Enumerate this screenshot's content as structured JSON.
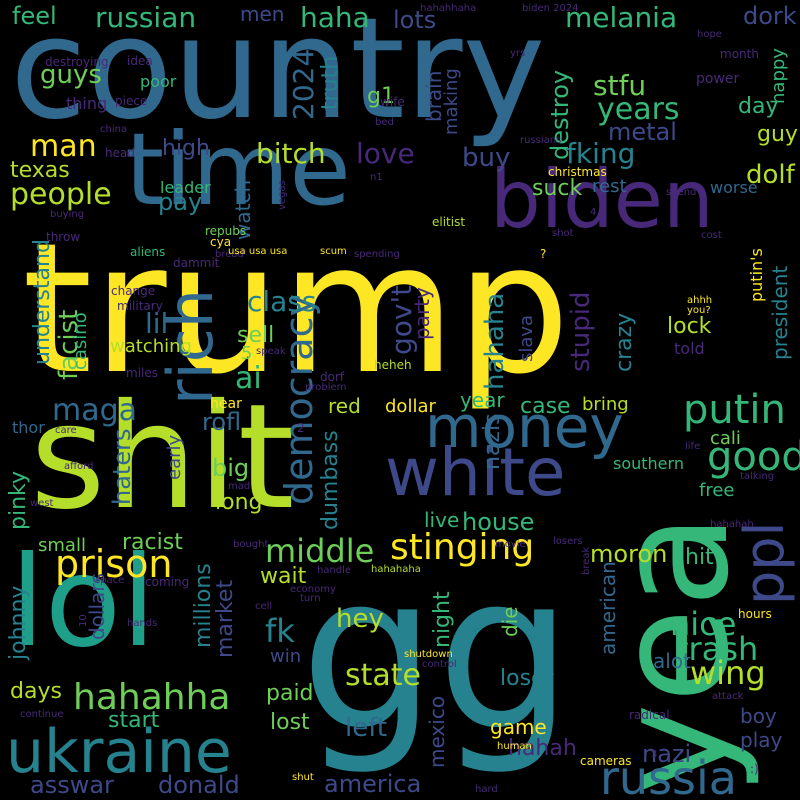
{
  "cloud": {
    "background": "#000000",
    "palette": [
      "#fde725",
      "#b5de2b",
      "#6ece58",
      "#35b779",
      "#1f9e89",
      "#26828e",
      "#31688e",
      "#3e4989",
      "#482878",
      "#440154"
    ],
    "words": [
      {
        "text": "trump",
        "color": "#fde725"
      },
      {
        "text": "country",
        "color": "#31688e"
      },
      {
        "text": "shit",
        "color": "#b5de2b"
      },
      {
        "text": "gg",
        "color": "#26828e"
      },
      {
        "text": "yea",
        "color": "#35b779"
      },
      {
        "text": "lol",
        "color": "#1f9e89"
      },
      {
        "text": "time",
        "color": "#31688e"
      },
      {
        "text": "biden",
        "color": "#482878"
      },
      {
        "text": "white",
        "color": "#3e4989"
      },
      {
        "text": "ukraine",
        "color": "#26828e"
      },
      {
        "text": "money",
        "color": "#31688e"
      },
      {
        "text": "rich",
        "color": "#31688e"
      },
      {
        "text": "russia",
        "color": "#31688e"
      },
      {
        "text": "ppl",
        "color": "#3e4989"
      },
      {
        "text": "prison",
        "color": "#fde725"
      },
      {
        "text": "stinging",
        "color": "#fde725"
      },
      {
        "text": "democracy",
        "color": "#31688e"
      },
      {
        "text": "putin",
        "color": "#35b779"
      },
      {
        "text": "good",
        "color": "#35b779"
      },
      {
        "text": "hahahha",
        "color": "#6ece58"
      },
      {
        "text": "middle",
        "color": "#6ece58"
      },
      {
        "text": "nice",
        "color": "#35b779"
      },
      {
        "text": "trash",
        "color": "#35b779"
      },
      {
        "text": "wing",
        "color": "#b5de2b"
      },
      {
        "text": "state",
        "color": "#b5de2b"
      },
      {
        "text": "people",
        "color": "#b5de2b"
      },
      {
        "text": "man",
        "color": "#fde725"
      },
      {
        "text": "melania",
        "color": "#35b779"
      },
      {
        "text": "haha",
        "color": "#35b779"
      },
      {
        "text": "russian",
        "color": "#35b779"
      },
      {
        "text": "feel",
        "color": "#35b779"
      },
      {
        "text": "dork",
        "color": "#3e4989"
      },
      {
        "text": "lots",
        "color": "#3e4989"
      },
      {
        "text": "men",
        "color": "#3e4989"
      },
      {
        "text": "2024",
        "color": "#31688e"
      },
      {
        "text": "guys",
        "color": "#6ece58"
      },
      {
        "text": "truth",
        "color": "#26828e"
      },
      {
        "text": "destroy",
        "color": "#35b779"
      },
      {
        "text": "stfu",
        "color": "#6ece58"
      },
      {
        "text": "years",
        "color": "#35b779"
      },
      {
        "text": "metal",
        "color": "#3e4989"
      },
      {
        "text": "guy",
        "color": "#b5de2b"
      },
      {
        "text": "day",
        "color": "#35b779"
      },
      {
        "text": "happy",
        "color": "#35b779"
      },
      {
        "text": "fking",
        "color": "#26828e"
      },
      {
        "text": "buy",
        "color": "#3e4989"
      },
      {
        "text": "love",
        "color": "#482878"
      },
      {
        "text": "bitch",
        "color": "#b5de2b"
      },
      {
        "text": "high",
        "color": "#3e4989"
      },
      {
        "text": "texas",
        "color": "#b5de2b"
      },
      {
        "text": "pay",
        "color": "#26828e"
      },
      {
        "text": "suck",
        "color": "#6ece58"
      },
      {
        "text": "rest",
        "color": "#31688e"
      },
      {
        "text": "dolf",
        "color": "#b5de2b"
      },
      {
        "text": "worse",
        "color": "#31688e"
      },
      {
        "text": "leader",
        "color": "#35b779"
      },
      {
        "text": "watch",
        "color": "#31688e"
      },
      {
        "text": "brain",
        "color": "#3e4989"
      },
      {
        "text": "making",
        "color": "#3e4989"
      },
      {
        "text": "g1",
        "color": "#6ece58"
      },
      {
        "text": "understand",
        "color": "#26828e"
      },
      {
        "text": "facist",
        "color": "#6ece58"
      },
      {
        "text": "casino",
        "color": "#35b779"
      },
      {
        "text": "class",
        "color": "#26828e"
      },
      {
        "text": "lil",
        "color": "#31688e"
      },
      {
        "text": "ai",
        "color": "#35b779"
      },
      {
        "text": "gov't",
        "color": "#3e4989"
      },
      {
        "text": "hahaha",
        "color": "#26828e"
      },
      {
        "text": "party",
        "color": "#482878"
      },
      {
        "text": "lock",
        "color": "#b5de2b"
      },
      {
        "text": "crazy",
        "color": "#26828e"
      },
      {
        "text": "putin's",
        "color": "#fde725"
      },
      {
        "text": "president",
        "color": "#26828e"
      },
      {
        "text": "maga",
        "color": "#31688e"
      },
      {
        "text": "sell",
        "color": "#6ece58"
      },
      {
        "text": "5",
        "color": "#6ece58"
      },
      {
        "text": "watching",
        "color": "#b5de2b"
      },
      {
        "text": "slava",
        "color": "#3e4989"
      },
      {
        "text": "stupid",
        "color": "#482878"
      },
      {
        "text": "nazis",
        "color": "#31688e"
      },
      {
        "text": "told",
        "color": "#482878"
      },
      {
        "text": "rofl",
        "color": "#31688e"
      },
      {
        "text": "red",
        "color": "#b5de2b"
      },
      {
        "text": "dollar",
        "color": "#fde725"
      },
      {
        "text": "case",
        "color": "#35b779"
      },
      {
        "text": "bring",
        "color": "#b5de2b"
      },
      {
        "text": "year",
        "color": "#35b779"
      },
      {
        "text": "cali",
        "color": "#6ece58"
      },
      {
        "text": "haters",
        "color": "#31688e"
      },
      {
        "text": "big",
        "color": "#6ece58"
      },
      {
        "text": "early",
        "color": "#3e4989"
      },
      {
        "text": "long",
        "color": "#b5de2b"
      },
      {
        "text": "dumbass",
        "color": "#26828e"
      },
      {
        "text": "southern",
        "color": "#35b779"
      },
      {
        "text": "free",
        "color": "#35b779"
      },
      {
        "text": "pinky",
        "color": "#35b779"
      },
      {
        "text": "live",
        "color": "#35b779"
      },
      {
        "text": "house",
        "color": "#35b779"
      },
      {
        "text": "small",
        "color": "#6ece58"
      },
      {
        "text": "racist",
        "color": "#6ece58"
      },
      {
        "text": "moron",
        "color": "#b5de2b"
      },
      {
        "text": "hit",
        "color": "#35b779"
      },
      {
        "text": "johnny",
        "color": "#26828e"
      },
      {
        "text": "dollars",
        "color": "#3e4989"
      },
      {
        "text": "millions",
        "color": "#26828e"
      },
      {
        "text": "market",
        "color": "#3e4989"
      },
      {
        "text": "wait",
        "color": "#b5de2b"
      },
      {
        "text": "fk",
        "color": "#26828e"
      },
      {
        "text": "win",
        "color": "#3e4989"
      },
      {
        "text": "hey",
        "color": "#b5de2b"
      },
      {
        "text": "night",
        "color": "#35b779"
      },
      {
        "text": "die",
        "color": "#6ece58"
      },
      {
        "text": "american",
        "color": "#31688e"
      },
      {
        "text": "alot",
        "color": "#31688e"
      },
      {
        "text": "days",
        "color": "#b5de2b"
      },
      {
        "text": "paid",
        "color": "#6ece58"
      },
      {
        "text": "start",
        "color": "#35b779"
      },
      {
        "text": "lost",
        "color": "#6ece58"
      },
      {
        "text": "left",
        "color": "#31688e"
      },
      {
        "text": "mexico",
        "color": "#3e4989"
      },
      {
        "text": "loser",
        "color": "#26828e"
      },
      {
        "text": "game",
        "color": "#fde725"
      },
      {
        "text": "nazi",
        "color": "#3e4989"
      },
      {
        "text": "hahah",
        "color": "#482878"
      },
      {
        "text": "boy",
        "color": "#3e4989"
      },
      {
        "text": "play",
        "color": "#3e4989"
      },
      {
        "text": "asswar",
        "color": "#3e4989"
      },
      {
        "text": "donald",
        "color": "#3e4989"
      },
      {
        "text": "america",
        "color": "#3e4989"
      },
      {
        "text": "thor",
        "color": "#31688e"
      },
      {
        "text": "hear",
        "color": "#fde725"
      },
      {
        "text": "poor",
        "color": "#35b779"
      },
      {
        "text": "thing",
        "color": "#482878"
      },
      {
        "text": "idea",
        "color": "#482878"
      },
      {
        "text": "destroying",
        "color": "#482878"
      },
      {
        "text": "china",
        "color": "#482878"
      },
      {
        "text": "piece",
        "color": "#482878"
      },
      {
        "text": "wife",
        "color": "#482878"
      },
      {
        "text": "bed",
        "color": "#482878"
      },
      {
        "text": "russians",
        "color": "#482878"
      },
      {
        "text": "power",
        "color": "#482878"
      },
      {
        "text": "month",
        "color": "#482878"
      },
      {
        "text": "hope",
        "color": "#482878"
      },
      {
        "text": "hahahhaha",
        "color": "#482878"
      },
      {
        "text": "biden 2024",
        "color": "#482878"
      },
      {
        "text": "yrs",
        "color": "#482878"
      },
      {
        "text": "head",
        "color": "#482878"
      },
      {
        "text": "christmas",
        "color": "#fde725"
      },
      {
        "text": "n1",
        "color": "#482878"
      },
      {
        "text": "vegas",
        "color": "#482878"
      },
      {
        "text": "elitist",
        "color": "#b5de2b"
      },
      {
        "text": "spend",
        "color": "#482878"
      },
      {
        "text": "cost",
        "color": "#482878"
      },
      {
        "text": "buying",
        "color": "#482878"
      },
      {
        "text": "throw",
        "color": "#482878"
      },
      {
        "text": "repubs",
        "color": "#6ece58"
      },
      {
        "text": "cya",
        "color": "#fde725"
      },
      {
        "text": "bread",
        "color": "#482878"
      },
      {
        "text": "aliens",
        "color": "#35b779"
      },
      {
        "text": "dammit",
        "color": "#482878"
      },
      {
        "text": "usa usa usa",
        "color": "#fde725"
      },
      {
        "text": "scum",
        "color": "#fde725"
      },
      {
        "text": "spending",
        "color": "#482878"
      },
      {
        "text": "shot",
        "color": "#482878"
      },
      {
        "text": "?",
        "color": "#fde725"
      },
      {
        "text": "4",
        "color": "#482878"
      },
      {
        "text": "change",
        "color": "#482878"
      },
      {
        "text": "military",
        "color": "#482878"
      },
      {
        "text": "speak",
        "color": "#482878"
      },
      {
        "text": "heheh",
        "color": "#b5de2b"
      },
      {
        "text": "miles",
        "color": "#482878"
      },
      {
        "text": "problem",
        "color": "#482878"
      },
      {
        "text": "dorf",
        "color": "#482878"
      },
      {
        "text": "ahhh",
        "color": "#fde725"
      },
      {
        "text": "you?",
        "color": "#fde725"
      },
      {
        "text": "care",
        "color": "#482878"
      },
      {
        "text": "afford",
        "color": "#482878"
      },
      {
        "text": "west",
        "color": "#482878"
      },
      {
        "text": "mad",
        "color": "#482878"
      },
      {
        "text": "bought",
        "color": "#482878"
      },
      {
        "text": "movie",
        "color": "#482878"
      },
      {
        "text": "losers",
        "color": "#482878"
      },
      {
        "text": "handle",
        "color": "#482878"
      },
      {
        "text": "hahahaha",
        "color": "#b5de2b"
      },
      {
        "text": "space",
        "color": "#482878"
      },
      {
        "text": "coming",
        "color": "#482878"
      },
      {
        "text": "economy",
        "color": "#482878"
      },
      {
        "text": "turn",
        "color": "#482878"
      },
      {
        "text": "cell",
        "color": "#482878"
      },
      {
        "text": "hands",
        "color": "#482878"
      },
      {
        "text": "10",
        "color": "#482878"
      },
      {
        "text": "shutdown",
        "color": "#fde725"
      },
      {
        "text": "control",
        "color": "#482878"
      },
      {
        "text": "continue",
        "color": "#482878"
      },
      {
        "text": "radical",
        "color": "#482878"
      },
      {
        "text": "human",
        "color": "#fde725"
      },
      {
        "text": "attack",
        "color": "#482878"
      },
      {
        "text": "life",
        "color": "#482878"
      },
      {
        "text": "talking",
        "color": "#482878"
      },
      {
        "text": "hahahah",
        "color": "#482878"
      },
      {
        "text": "hours",
        "color": "#fde725"
      },
      {
        "text": "break",
        "color": "#482878"
      },
      {
        "text": "cameras",
        "color": "#fde725"
      },
      {
        "text": "3",
        "color": "#482878"
      },
      {
        "text": ":)",
        "color": "#482878"
      },
      {
        "text": "hard",
        "color": "#482878"
      },
      {
        "text": "shut",
        "color": "#fde725"
      },
      {
        "text": "2",
        "color": "#482878"
      }
    ]
  }
}
